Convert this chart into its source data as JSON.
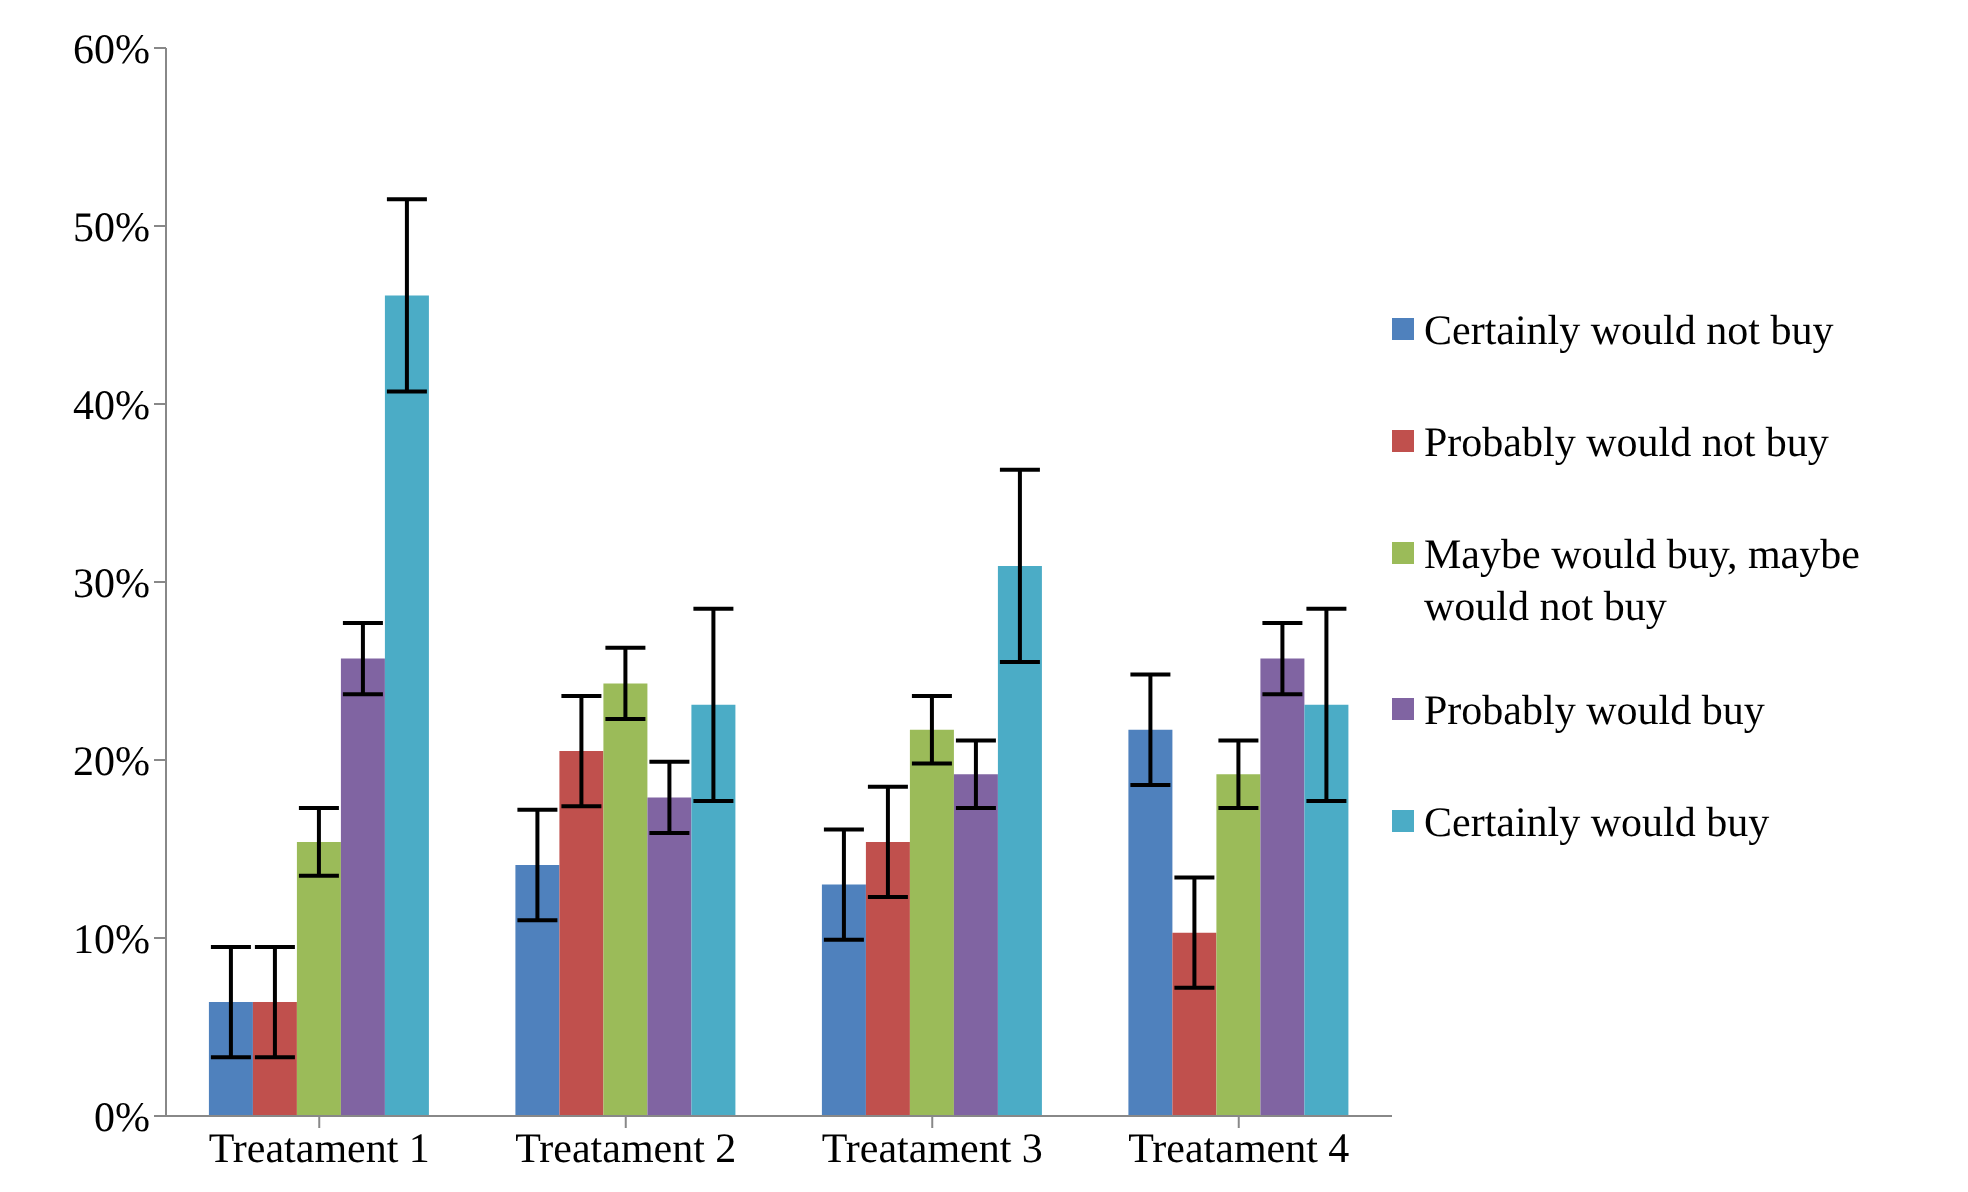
{
  "chart_data": {
    "type": "bar",
    "categories": [
      "Treatament 1",
      "Treatament 2",
      "Treatament 3",
      "Treatament 4"
    ],
    "series": [
      {
        "name": "Certainly would not buy",
        "color": "#4f81bd",
        "values": [
          6.4,
          14.1,
          13.0,
          21.7
        ],
        "errors": [
          3.1,
          3.1,
          3.1,
          3.1
        ]
      },
      {
        "name": "Probably would not buy",
        "color": "#c0504d",
        "values": [
          6.4,
          20.5,
          15.4,
          10.3
        ],
        "errors": [
          3.1,
          3.1,
          3.1,
          3.1
        ]
      },
      {
        "name": "Maybe would buy, maybe would not buy",
        "color": "#9bbb59",
        "values": [
          15.4,
          24.3,
          21.7,
          19.2
        ],
        "errors": [
          1.9,
          2.0,
          1.9,
          1.9
        ]
      },
      {
        "name": "Probably would buy",
        "color": "#8064a2",
        "values": [
          25.7,
          17.9,
          19.2,
          25.7
        ],
        "errors": [
          2.0,
          2.0,
          1.9,
          2.0
        ]
      },
      {
        "name": "Certainly would buy",
        "color": "#4bacc6",
        "values": [
          46.1,
          23.1,
          30.9,
          23.1
        ],
        "errors": [
          5.4,
          5.4,
          5.4,
          5.4
        ]
      }
    ],
    "ylim": [
      0,
      60
    ],
    "yticks": [
      {
        "value": 0,
        "label": "0%"
      },
      {
        "value": 10,
        "label": "10%"
      },
      {
        "value": 20,
        "label": "20%"
      },
      {
        "value": 30,
        "label": "30%"
      },
      {
        "value": 40,
        "label": "40%"
      },
      {
        "value": 50,
        "label": "50%"
      },
      {
        "value": 60,
        "label": "60%"
      }
    ],
    "grid": false,
    "legend": "right"
  }
}
